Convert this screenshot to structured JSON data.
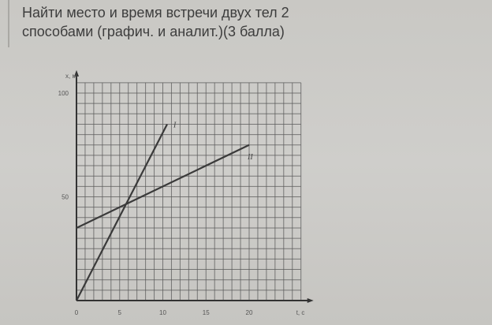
{
  "question": {
    "line1": "Найти место и время встречи двух тел 2",
    "line2": "способами (графич. и аналит.)(3 балла)"
  },
  "chart_data": {
    "type": "line",
    "xlabel": "t, c",
    "ylabel": "x, м",
    "xlim": [
      0,
      26
    ],
    "ylim": [
      0,
      105
    ],
    "grid": true,
    "x_ticks": [
      "0",
      "5",
      "10",
      "15",
      "20"
    ],
    "y_ticks": [
      "50",
      "100"
    ],
    "series": [
      {
        "name": "I",
        "x": [
          0,
          10.5
        ],
        "y": [
          0,
          85
        ]
      },
      {
        "name": "II",
        "x": [
          0,
          20
        ],
        "y": [
          35,
          75
        ]
      }
    ],
    "line_color": "#3a3a3a",
    "grid_color": "#5a5a5a"
  }
}
